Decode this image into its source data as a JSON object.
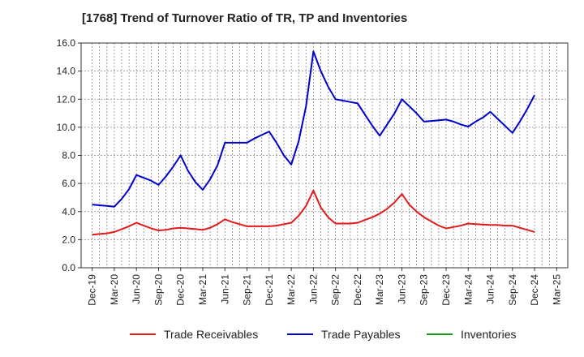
{
  "chart_data": {
    "type": "line",
    "title": "[1768]  Trend of Turnover Ratio of TR, TP and Inventories",
    "ylim": [
      0,
      16
    ],
    "y_ticks": [
      "0.0",
      "2.0",
      "4.0",
      "6.0",
      "8.0",
      "10.0",
      "12.0",
      "14.0",
      "16.0"
    ],
    "x_ticks": [
      "Dec-19",
      "Mar-20",
      "Jun-20",
      "Sep-20",
      "Dec-20",
      "Mar-21",
      "Jun-21",
      "Sep-21",
      "Dec-21",
      "Mar-22",
      "Jun-22",
      "Sep-22",
      "Dec-22",
      "Mar-23",
      "Jun-23",
      "Sep-23",
      "Dec-23",
      "Mar-24",
      "Jun-24",
      "Sep-24",
      "Dec-24",
      "Mar-25"
    ],
    "x_months": [
      "2019-12",
      "2020-01",
      "2020-02",
      "2020-03",
      "2020-04",
      "2020-05",
      "2020-06",
      "2020-07",
      "2020-08",
      "2020-09",
      "2020-10",
      "2020-11",
      "2020-12",
      "2021-01",
      "2021-02",
      "2021-03",
      "2021-04",
      "2021-05",
      "2021-06",
      "2021-07",
      "2021-08",
      "2021-09",
      "2021-10",
      "2021-11",
      "2021-12",
      "2022-01",
      "2022-02",
      "2022-03",
      "2022-04",
      "2022-05",
      "2022-06",
      "2022-07",
      "2022-08",
      "2022-09",
      "2022-10",
      "2022-11",
      "2022-12",
      "2023-01",
      "2023-02",
      "2023-03",
      "2023-04",
      "2023-05",
      "2023-06",
      "2023-07",
      "2023-08",
      "2023-09",
      "2023-10",
      "2023-11",
      "2023-12",
      "2024-01",
      "2024-02",
      "2024-03",
      "2024-04",
      "2024-05",
      "2024-06",
      "2024-07",
      "2024-08",
      "2024-09",
      "2024-10",
      "2024-11",
      "2024-12"
    ],
    "grid": true,
    "legend_position": "bottom",
    "series": [
      {
        "name": "Trade Receivables",
        "color": "#e31a1c",
        "values": [
          2.35,
          2.4,
          2.45,
          2.55,
          2.75,
          2.95,
          3.2,
          3.0,
          2.8,
          2.65,
          2.7,
          2.8,
          2.85,
          2.8,
          2.75,
          2.7,
          2.85,
          3.1,
          3.45,
          3.25,
          3.1,
          2.95,
          2.95,
          2.95,
          2.95,
          3.0,
          3.1,
          3.2,
          3.7,
          4.4,
          5.5,
          4.3,
          3.6,
          3.15,
          3.15,
          3.15,
          3.2,
          3.4,
          3.6,
          3.85,
          4.2,
          4.65,
          5.25,
          4.5,
          4.0,
          3.6,
          3.3,
          3.0,
          2.8,
          2.9,
          3.0,
          3.15,
          3.1,
          3.08,
          3.05,
          3.05,
          3.0,
          3.0,
          2.85,
          2.7,
          2.55
        ]
      },
      {
        "name": "Trade Payables",
        "color": "#0000cc",
        "values": [
          4.5,
          4.45,
          4.4,
          4.35,
          4.9,
          5.6,
          6.6,
          6.4,
          6.2,
          5.9,
          6.5,
          7.2,
          8.0,
          6.9,
          6.1,
          5.55,
          6.3,
          7.3,
          8.9,
          8.9,
          8.9,
          8.9,
          9.2,
          9.45,
          9.7,
          8.9,
          8.0,
          7.35,
          9.0,
          11.5,
          15.4,
          14.0,
          12.9,
          12.0,
          11.9,
          11.8,
          11.7,
          10.9,
          10.1,
          9.4,
          10.2,
          11.0,
          12.0,
          11.5,
          11.0,
          10.4,
          10.45,
          10.5,
          10.55,
          10.4,
          10.2,
          10.05,
          10.4,
          10.7,
          11.1,
          10.6,
          10.1,
          9.6,
          10.4,
          11.3,
          12.3
        ]
      },
      {
        "name": "Inventories",
        "color": "#1a9a1a",
        "values": []
      }
    ]
  }
}
